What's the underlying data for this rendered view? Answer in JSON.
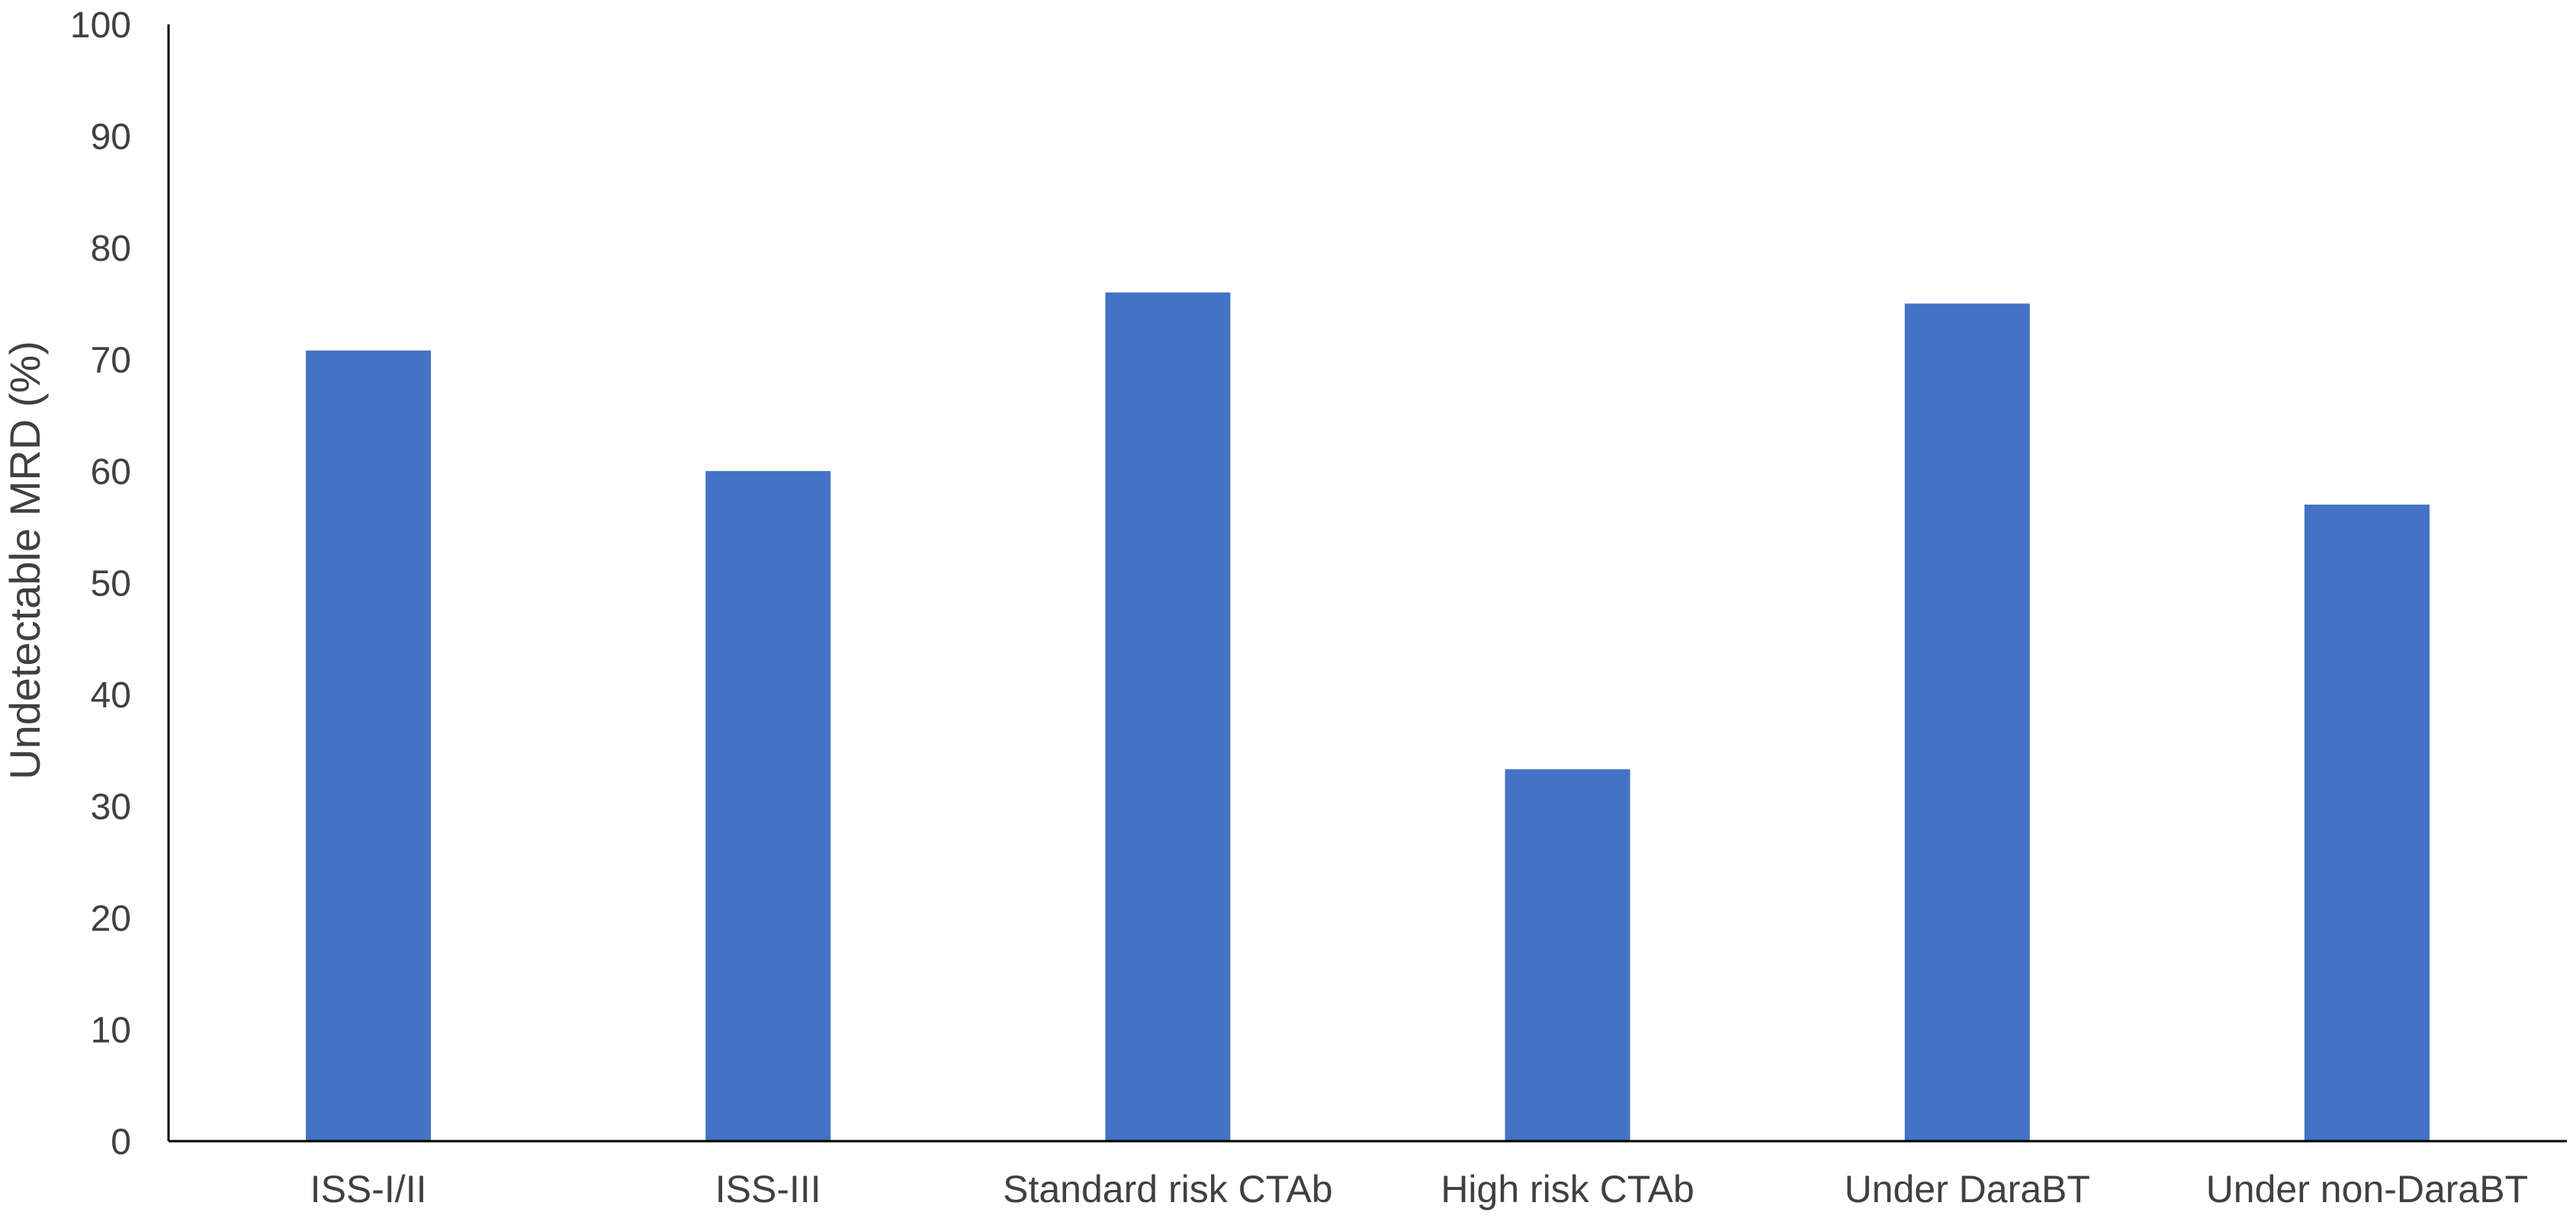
{
  "chart_data": {
    "type": "bar",
    "title": "",
    "xlabel": "",
    "ylabel": "Undetectable MRD (%)",
    "categories": [
      "ISS-I/II",
      "ISS-III",
      "Standard risk CTAb",
      "High risk CTAb",
      "Under DaraBT",
      "Under non-DaraBT"
    ],
    "values": [
      70.8,
      60,
      76,
      33.3,
      75,
      57
    ],
    "ylim": [
      0,
      100
    ],
    "yticks": [
      "0",
      "10",
      "20",
      "30",
      "40",
      "50",
      "60",
      "70",
      "80",
      "90",
      "100"
    ],
    "grid": false,
    "legend": "none",
    "bar_color": "#4472C4",
    "axis_color": "#000000"
  }
}
